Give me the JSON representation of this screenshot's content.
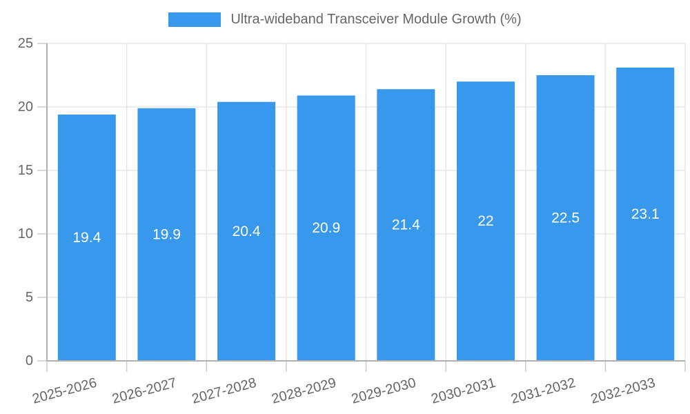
{
  "chart_data": {
    "type": "bar",
    "title": "Ultra-wideband Transceiver Module Growth (%)",
    "categories": [
      "2025-2026",
      "2026-2027",
      "2027-2028",
      "2028-2029",
      "2029-2030",
      "2030-2031",
      "2031-2032",
      "2032-2033"
    ],
    "values": [
      19.4,
      19.9,
      20.4,
      20.9,
      21.4,
      22,
      22.5,
      23.1
    ],
    "xlabel": "",
    "ylabel": "",
    "ylim": [
      0,
      25
    ],
    "yticks": [
      0,
      5,
      10,
      15,
      20,
      25
    ],
    "legend_position": "top",
    "grid": true,
    "x_tick_rotation_deg": -15,
    "colors": {
      "bar": "#3898EC",
      "bar_value_label": "#ffffff",
      "axis_line": "#b0b0b0",
      "gridline": "#e6e6e6",
      "tick_mark": "#cccccc",
      "tick_text": "#666666",
      "legend_text": "#666666"
    }
  }
}
